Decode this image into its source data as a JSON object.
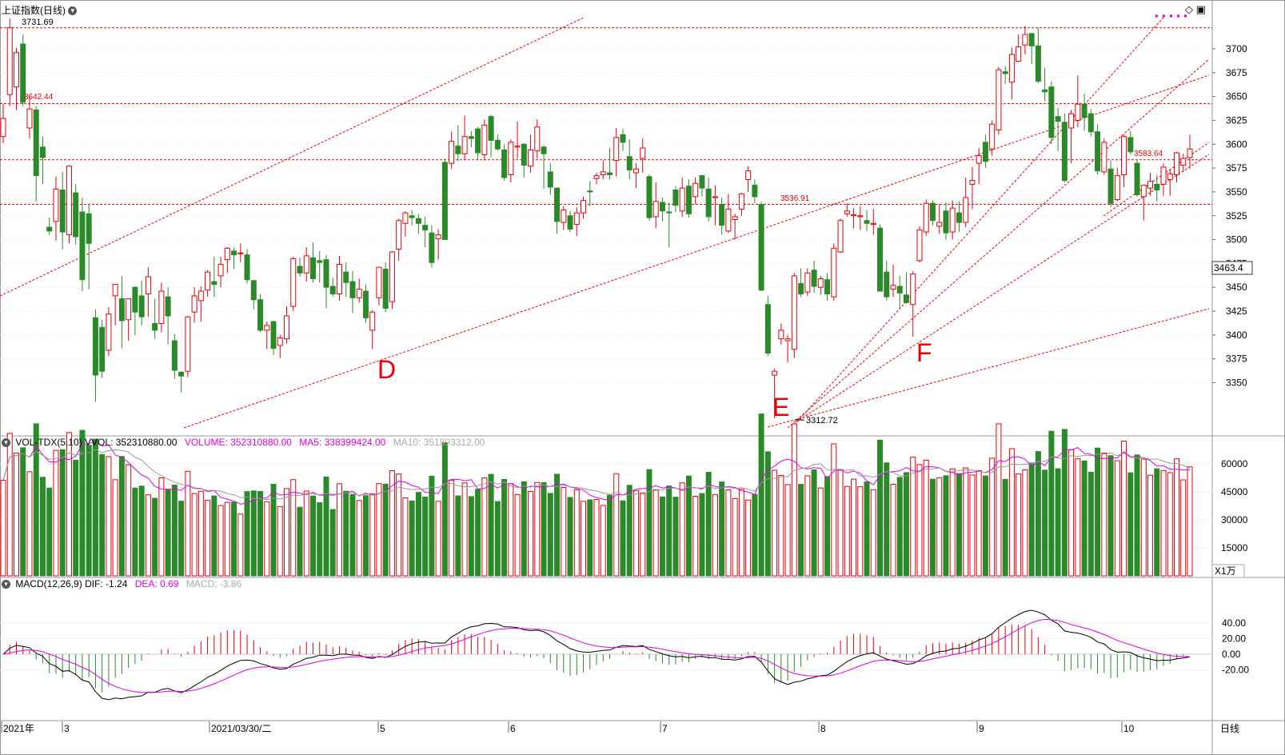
{
  "main_panel": {
    "title": "上证指数(日线)",
    "high_label": "3731.69",
    "level_label": "3642.44",
    "label_3536": "3536.91",
    "label_3583": "3583.64",
    "low_label": "3312.72",
    "current_price": "3463.4",
    "letters": [
      "D",
      "E",
      "F"
    ],
    "y_ticks": [
      3350,
      3375,
      3400,
      3425,
      3450,
      3475,
      3500,
      3525,
      3550,
      3575,
      3600,
      3625,
      3650,
      3675,
      3700
    ]
  },
  "volume_panel": {
    "indicator": "VOL-TDX(5,10)",
    "vvol": "VVOL: 352310880.00",
    "volume": "VOLUME: 352310880.00",
    "ma5": "MA5: 338399424.00",
    "ma10": "MA10: 351893312.00",
    "unit": "X1万",
    "y_ticks": [
      15000,
      30000,
      45000,
      60000
    ]
  },
  "macd_panel": {
    "indicator": "MACD(12,26,9)",
    "dif": "DIF: -1.24",
    "dea": "DEA: 0.69",
    "macd": "MACD: -3.86",
    "y_ticks": [
      "40.00",
      "20.00",
      "0.00",
      "-20.00"
    ]
  },
  "x_axis": {
    "labels": [
      "2021年",
      "3",
      "2021/03/30/二",
      "5",
      "6",
      "7",
      "8",
      "9",
      "10"
    ],
    "period_label": "日线"
  },
  "colors": {
    "up": "#e8000b",
    "down": "#2a8a2a",
    "dif": "#000000",
    "dea": "#e000e0",
    "bg": "#ffffff"
  },
  "chart_data": {
    "type": "candlestick",
    "candles": [
      {
        "o": 3608,
        "h": 3642,
        "l": 3601,
        "c": 3627
      },
      {
        "o": 3652,
        "h": 3731.69,
        "l": 3640,
        "c": 3722
      },
      {
        "o": 3660,
        "h": 3701,
        "l": 3636,
        "c": 3696
      },
      {
        "o": 3705,
        "h": 3715,
        "l": 3640,
        "c": 3644
      },
      {
        "o": 3617,
        "h": 3651,
        "l": 3606,
        "c": 3637
      },
      {
        "o": 3636,
        "h": 3640,
        "l": 3540,
        "c": 3567
      },
      {
        "o": 3597,
        "h": 3608,
        "l": 3558,
        "c": 3586
      },
      {
        "o": 3513,
        "h": 3523,
        "l": 3505,
        "c": 3509
      },
      {
        "o": 3519,
        "h": 3566,
        "l": 3499,
        "c": 3553
      },
      {
        "o": 3552,
        "h": 3571,
        "l": 3490,
        "c": 3508
      },
      {
        "o": 3505,
        "h": 3578,
        "l": 3496,
        "c": 3577
      },
      {
        "o": 3549,
        "h": 3558,
        "l": 3495,
        "c": 3503
      },
      {
        "o": 3529,
        "h": 3544,
        "l": 3446,
        "c": 3458
      },
      {
        "o": 3527,
        "h": 3537,
        "l": 3448,
        "c": 3496
      },
      {
        "o": 3418,
        "h": 3427,
        "l": 3330,
        "c": 3358
      },
      {
        "o": 3408,
        "h": 3416,
        "l": 3355,
        "c": 3362
      },
      {
        "o": 3384,
        "h": 3429,
        "l": 3378,
        "c": 3422
      },
      {
        "o": 3441,
        "h": 3453,
        "l": 3410,
        "c": 3453
      },
      {
        "o": 3438,
        "h": 3462,
        "l": 3386,
        "c": 3415
      },
      {
        "o": 3416,
        "h": 3438,
        "l": 3394,
        "c": 3438
      },
      {
        "o": 3450,
        "h": 3451,
        "l": 3400,
        "c": 3424
      },
      {
        "o": 3441,
        "h": 3457,
        "l": 3410,
        "c": 3419
      },
      {
        "o": 3443,
        "h": 3471,
        "l": 3419,
        "c": 3461
      },
      {
        "o": 3412,
        "h": 3438,
        "l": 3396,
        "c": 3405
      },
      {
        "o": 3412,
        "h": 3455,
        "l": 3403,
        "c": 3446
      },
      {
        "o": 3440,
        "h": 3450,
        "l": 3390,
        "c": 3420
      },
      {
        "o": 3394,
        "h": 3401,
        "l": 3354,
        "c": 3363
      },
      {
        "o": 3361,
        "h": 3362,
        "l": 3340,
        "c": 3357
      },
      {
        "o": 3362,
        "h": 3420,
        "l": 3356,
        "c": 3419
      },
      {
        "o": 3424,
        "h": 3450,
        "l": 3413,
        "c": 3441
      },
      {
        "o": 3436,
        "h": 3451,
        "l": 3414,
        "c": 3446
      },
      {
        "o": 3447,
        "h": 3468,
        "l": 3440,
        "c": 3466
      },
      {
        "o": 3456,
        "h": 3482,
        "l": 3440,
        "c": 3453
      },
      {
        "o": 3462,
        "h": 3482,
        "l": 3450,
        "c": 3474
      },
      {
        "o": 3479,
        "h": 3492,
        "l": 3465,
        "c": 3491
      },
      {
        "o": 3488,
        "h": 3492,
        "l": 3469,
        "c": 3484
      },
      {
        "o": 3486,
        "h": 3496,
        "l": 3476,
        "c": 3486
      },
      {
        "o": 3484,
        "h": 3490,
        "l": 3454,
        "c": 3458
      },
      {
        "o": 3457,
        "h": 3458,
        "l": 3427,
        "c": 3437
      },
      {
        "o": 3437,
        "h": 3443,
        "l": 3403,
        "c": 3405
      },
      {
        "o": 3405,
        "h": 3414,
        "l": 3385,
        "c": 3410
      },
      {
        "o": 3414,
        "h": 3415,
        "l": 3379,
        "c": 3386
      },
      {
        "o": 3389,
        "h": 3400,
        "l": 3376,
        "c": 3397
      },
      {
        "o": 3396,
        "h": 3430,
        "l": 3391,
        "c": 3420
      },
      {
        "o": 3430,
        "h": 3482,
        "l": 3425,
        "c": 3480
      },
      {
        "o": 3472,
        "h": 3481,
        "l": 3461,
        "c": 3465
      },
      {
        "o": 3465,
        "h": 3492,
        "l": 3456,
        "c": 3483
      },
      {
        "o": 3481,
        "h": 3497,
        "l": 3455,
        "c": 3459
      },
      {
        "o": 3478,
        "h": 3488,
        "l": 3455,
        "c": 3476
      },
      {
        "o": 3479,
        "h": 3484,
        "l": 3428,
        "c": 3450
      },
      {
        "o": 3451,
        "h": 3460,
        "l": 3440,
        "c": 3443
      },
      {
        "o": 3443,
        "h": 3483,
        "l": 3436,
        "c": 3474
      },
      {
        "o": 3466,
        "h": 3476,
        "l": 3440,
        "c": 3455
      },
      {
        "o": 3456,
        "h": 3467,
        "l": 3423,
        "c": 3439
      },
      {
        "o": 3439,
        "h": 3459,
        "l": 3434,
        "c": 3448
      },
      {
        "o": 3446,
        "h": 3453,
        "l": 3413,
        "c": 3418
      },
      {
        "o": 3405,
        "h": 3426,
        "l": 3385,
        "c": 3424
      },
      {
        "o": 3439,
        "h": 3471,
        "l": 3431,
        "c": 3471
      },
      {
        "o": 3469,
        "h": 3476,
        "l": 3424,
        "c": 3428
      },
      {
        "o": 3435,
        "h": 3488,
        "l": 3427,
        "c": 3487
      },
      {
        "o": 3490,
        "h": 3522,
        "l": 3478,
        "c": 3520
      },
      {
        "o": 3517,
        "h": 3530,
        "l": 3503,
        "c": 3528
      },
      {
        "o": 3525,
        "h": 3531,
        "l": 3515,
        "c": 3523
      },
      {
        "o": 3522,
        "h": 3527,
        "l": 3506,
        "c": 3517
      },
      {
        "o": 3515,
        "h": 3524,
        "l": 3492,
        "c": 3510
      },
      {
        "o": 3507,
        "h": 3515,
        "l": 3471,
        "c": 3476
      },
      {
        "o": 3501,
        "h": 3511,
        "l": 3479,
        "c": 3505
      },
      {
        "o": 3581,
        "h": 3585,
        "l": 3500,
        "c": 3500
      },
      {
        "o": 3580,
        "h": 3613,
        "l": 3574,
        "c": 3603
      },
      {
        "o": 3598,
        "h": 3620,
        "l": 3582,
        "c": 3590
      },
      {
        "o": 3590,
        "h": 3630,
        "l": 3583,
        "c": 3608
      },
      {
        "o": 3608,
        "h": 3614,
        "l": 3597,
        "c": 3606
      },
      {
        "o": 3616,
        "h": 3618,
        "l": 3584,
        "c": 3591
      },
      {
        "o": 3589,
        "h": 3626,
        "l": 3583,
        "c": 3620
      },
      {
        "o": 3629,
        "h": 3631,
        "l": 3586,
        "c": 3604
      },
      {
        "o": 3604,
        "h": 3610,
        "l": 3593,
        "c": 3595
      },
      {
        "o": 3594,
        "h": 3600,
        "l": 3562,
        "c": 3565
      },
      {
        "o": 3568,
        "h": 3605,
        "l": 3560,
        "c": 3602
      },
      {
        "o": 3597,
        "h": 3624,
        "l": 3585,
        "c": 3598
      },
      {
        "o": 3600,
        "h": 3601,
        "l": 3565,
        "c": 3578
      },
      {
        "o": 3577,
        "h": 3610,
        "l": 3570,
        "c": 3594
      },
      {
        "o": 3593,
        "h": 3626,
        "l": 3585,
        "c": 3618
      },
      {
        "o": 3597,
        "h": 3599,
        "l": 3553,
        "c": 3590
      },
      {
        "o": 3571,
        "h": 3580,
        "l": 3547,
        "c": 3555
      },
      {
        "o": 3554,
        "h": 3554,
        "l": 3506,
        "c": 3519
      },
      {
        "o": 3518,
        "h": 3535,
        "l": 3510,
        "c": 3531
      },
      {
        "o": 3525,
        "h": 3530,
        "l": 3508,
        "c": 3511
      },
      {
        "o": 3516,
        "h": 3534,
        "l": 3504,
        "c": 3528
      },
      {
        "o": 3528,
        "h": 3545,
        "l": 3522,
        "c": 3541
      },
      {
        "o": 3551,
        "h": 3561,
        "l": 3535,
        "c": 3550
      },
      {
        "o": 3564,
        "h": 3570,
        "l": 3558,
        "c": 3567
      },
      {
        "o": 3568,
        "h": 3583,
        "l": 3563,
        "c": 3571
      },
      {
        "o": 3570,
        "h": 3596,
        "l": 3563,
        "c": 3568
      },
      {
        "o": 3583,
        "h": 3617,
        "l": 3566,
        "c": 3607
      },
      {
        "o": 3610,
        "h": 3616,
        "l": 3593,
        "c": 3602
      },
      {
        "o": 3587,
        "h": 3605,
        "l": 3563,
        "c": 3573
      },
      {
        "o": 3570,
        "h": 3580,
        "l": 3554,
        "c": 3574
      },
      {
        "o": 3585,
        "h": 3606,
        "l": 3570,
        "c": 3596
      },
      {
        "o": 3566,
        "h": 3568,
        "l": 3520,
        "c": 3523
      },
      {
        "o": 3524,
        "h": 3560,
        "l": 3512,
        "c": 3540
      },
      {
        "o": 3539,
        "h": 3544,
        "l": 3519,
        "c": 3530
      },
      {
        "o": 3529,
        "h": 3539,
        "l": 3492,
        "c": 3528
      },
      {
        "o": 3552,
        "h": 3556,
        "l": 3529,
        "c": 3536
      },
      {
        "o": 3530,
        "h": 3565,
        "l": 3524,
        "c": 3554
      },
      {
        "o": 3556,
        "h": 3563,
        "l": 3523,
        "c": 3527
      },
      {
        "o": 3545,
        "h": 3565,
        "l": 3537,
        "c": 3559
      },
      {
        "o": 3567,
        "h": 3568,
        "l": 3545,
        "c": 3554
      },
      {
        "o": 3553,
        "h": 3565,
        "l": 3519,
        "c": 3524
      },
      {
        "o": 3544,
        "h": 3557,
        "l": 3515,
        "c": 3545
      },
      {
        "o": 3537,
        "h": 3544,
        "l": 3505,
        "c": 3515
      },
      {
        "o": 3509,
        "h": 3548,
        "l": 3507,
        "c": 3532
      },
      {
        "o": 3521,
        "h": 3527,
        "l": 3500,
        "c": 3524
      },
      {
        "o": 3532,
        "h": 3549,
        "l": 3525,
        "c": 3548
      },
      {
        "o": 3563,
        "h": 3577,
        "l": 3550,
        "c": 3572
      },
      {
        "o": 3557,
        "h": 3563,
        "l": 3538,
        "c": 3545
      },
      {
        "o": 3536.91,
        "h": 3540,
        "l": 3446,
        "c": 3447
      },
      {
        "o": 3432,
        "h": 3441,
        "l": 3378,
        "c": 3381
      },
      {
        "o": 3358,
        "h": 3365,
        "l": 3312.72,
        "c": 3362
      },
      {
        "o": 3396,
        "h": 3412,
        "l": 3390,
        "c": 3405
      },
      {
        "o": 3394,
        "h": 3400,
        "l": 3371,
        "c": 3396
      },
      {
        "o": 3385,
        "h": 3465,
        "l": 3376,
        "c": 3462
      },
      {
        "o": 3454,
        "h": 3470,
        "l": 3440,
        "c": 3443
      },
      {
        "o": 3445,
        "h": 3470,
        "l": 3441,
        "c": 3465
      },
      {
        "o": 3468,
        "h": 3478,
        "l": 3444,
        "c": 3451
      },
      {
        "o": 3450,
        "h": 3462,
        "l": 3442,
        "c": 3459
      },
      {
        "o": 3458,
        "h": 3465,
        "l": 3436,
        "c": 3443
      },
      {
        "o": 3440,
        "h": 3496,
        "l": 3436,
        "c": 3491
      },
      {
        "o": 3487,
        "h": 3522,
        "l": 3486,
        "c": 3520
      },
      {
        "o": 3527,
        "h": 3538,
        "l": 3524,
        "c": 3530
      },
      {
        "o": 3525,
        "h": 3533,
        "l": 3512,
        "c": 3526
      },
      {
        "o": 3524,
        "h": 3535,
        "l": 3510,
        "c": 3525
      },
      {
        "o": 3520,
        "h": 3531,
        "l": 3509,
        "c": 3517
      },
      {
        "o": 3516,
        "h": 3532,
        "l": 3505,
        "c": 3517
      },
      {
        "o": 3512,
        "h": 3516,
        "l": 3446,
        "c": 3446
      },
      {
        "o": 3466,
        "h": 3478,
        "l": 3436,
        "c": 3440
      },
      {
        "o": 3448,
        "h": 3474,
        "l": 3440,
        "c": 3452
      },
      {
        "o": 3451,
        "h": 3462,
        "l": 3427,
        "c": 3444
      },
      {
        "o": 3442,
        "h": 3466,
        "l": 3433,
        "c": 3434
      },
      {
        "o": 3432,
        "h": 3467,
        "l": 3398,
        "c": 3464
      },
      {
        "o": 3478,
        "h": 3514,
        "l": 3476,
        "c": 3510
      },
      {
        "o": 3508,
        "h": 3542,
        "l": 3504,
        "c": 3538
      },
      {
        "o": 3538,
        "h": 3541,
        "l": 3515,
        "c": 3520
      },
      {
        "o": 3514,
        "h": 3537,
        "l": 3506,
        "c": 3518
      },
      {
        "o": 3530,
        "h": 3539,
        "l": 3500,
        "c": 3507
      },
      {
        "o": 3508,
        "h": 3541,
        "l": 3500,
        "c": 3533
      },
      {
        "o": 3528,
        "h": 3540,
        "l": 3508,
        "c": 3518
      },
      {
        "o": 3518,
        "h": 3565,
        "l": 3513,
        "c": 3544
      },
      {
        "o": 3558,
        "h": 3576,
        "l": 3532,
        "c": 3562
      },
      {
        "o": 3580,
        "h": 3596,
        "l": 3558,
        "c": 3588
      },
      {
        "o": 3602,
        "h": 3610,
        "l": 3575,
        "c": 3582
      },
      {
        "o": 3595,
        "h": 3625,
        "l": 3588,
        "c": 3621
      },
      {
        "o": 3615,
        "h": 3681,
        "l": 3610,
        "c": 3678
      },
      {
        "o": 3676,
        "h": 3682,
        "l": 3663,
        "c": 3674
      },
      {
        "o": 3665,
        "h": 3701,
        "l": 3647,
        "c": 3694
      },
      {
        "o": 3687,
        "h": 3715,
        "l": 3686,
        "c": 3702
      },
      {
        "o": 3704,
        "h": 3723.85,
        "l": 3694,
        "c": 3715
      },
      {
        "o": 3716,
        "h": 3716,
        "l": 3684,
        "c": 3703
      },
      {
        "o": 3703,
        "h": 3722,
        "l": 3664,
        "c": 3666
      },
      {
        "o": 3657,
        "h": 3680,
        "l": 3645,
        "c": 3655
      },
      {
        "o": 3660,
        "h": 3666,
        "l": 3600,
        "c": 3607
      },
      {
        "o": 3629,
        "h": 3638,
        "l": 3593,
        "c": 3624
      },
      {
        "o": 3623,
        "h": 3632,
        "l": 3560,
        "c": 3562
      },
      {
        "o": 3617,
        "h": 3636,
        "l": 3580,
        "c": 3632
      },
      {
        "o": 3625,
        "h": 3672,
        "l": 3618,
        "c": 3642
      },
      {
        "o": 3642,
        "h": 3653,
        "l": 3614,
        "c": 3628
      },
      {
        "o": 3632,
        "h": 3637,
        "l": 3608,
        "c": 3613
      },
      {
        "o": 3613,
        "h": 3621,
        "l": 3568,
        "c": 3572
      },
      {
        "o": 3571,
        "h": 3606,
        "l": 3568,
        "c": 3602
      },
      {
        "o": 3574,
        "h": 3583,
        "l": 3534,
        "c": 3538
      },
      {
        "o": 3542,
        "h": 3575,
        "l": 3540,
        "c": 3567
      },
      {
        "o": 3568,
        "h": 3610,
        "l": 3555,
        "c": 3608
      },
      {
        "o": 3607,
        "h": 3614,
        "l": 3589,
        "c": 3592
      },
      {
        "o": 3580,
        "h": 3583,
        "l": 3545,
        "c": 3547
      },
      {
        "o": 3545,
        "h": 3556,
        "l": 3520,
        "c": 3557
      },
      {
        "o": 3554,
        "h": 3570,
        "l": 3546,
        "c": 3561
      },
      {
        "o": 3558,
        "h": 3568,
        "l": 3540,
        "c": 3552
      },
      {
        "o": 3558,
        "h": 3580,
        "l": 3546,
        "c": 3576
      },
      {
        "o": 3563,
        "h": 3574,
        "l": 3546,
        "c": 3569
      },
      {
        "o": 3568,
        "h": 3592,
        "l": 3560,
        "c": 3591
      },
      {
        "o": 3578,
        "h": 3590,
        "l": 3571,
        "c": 3585
      },
      {
        "o": 3586,
        "h": 3610,
        "l": 3574,
        "c": 3595
      }
    ],
    "volume_ma5_label": "MA5",
    "macd_series": [
      "DIF",
      "DEA",
      "MACD"
    ]
  }
}
